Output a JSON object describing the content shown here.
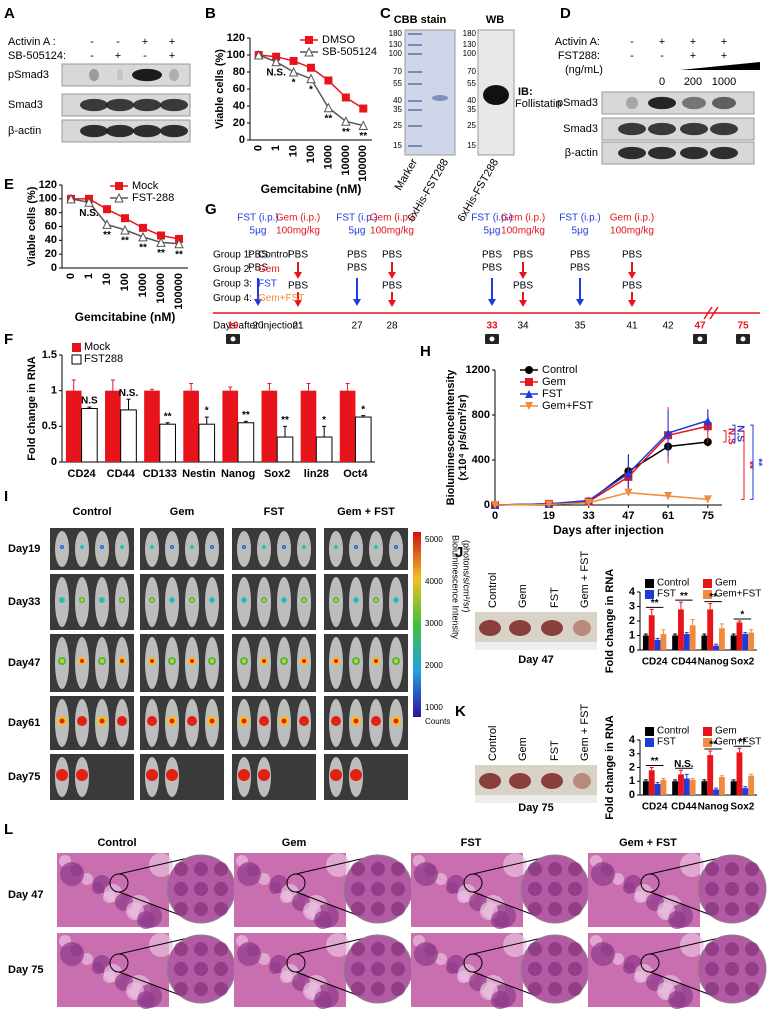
{
  "panel_labels": [
    "A",
    "B",
    "C",
    "D",
    "E",
    "F",
    "G",
    "H",
    "I",
    "J",
    "K",
    "L"
  ],
  "blot_A": {
    "conditions": [
      {
        "name": "Activin A :",
        "signs": [
          "-",
          "-",
          "+",
          "+"
        ]
      },
      {
        "name": "SB-505124:",
        "signs": [
          "-",
          "+",
          "-",
          "+"
        ]
      }
    ],
    "rows": [
      "pSmad3",
      "Smad3",
      "β-actin"
    ]
  },
  "blot_C": {
    "titles": [
      "CBB stain",
      "WB"
    ],
    "markers_cbb": [
      180,
      130,
      100,
      70,
      55,
      40,
      35,
      25,
      15
    ],
    "markers_wb": [
      180,
      130,
      100,
      70,
      55,
      40,
      35,
      25,
      15
    ],
    "ib": "IB:",
    "antibody": "Follistatin",
    "lanes": [
      "Marker",
      "6xHis-FST288",
      "6xHis-FST288"
    ]
  },
  "blot_D": {
    "conditions": [
      {
        "name": "Activin A:",
        "signs": [
          "-",
          "+",
          "+",
          "+"
        ]
      },
      {
        "name": "FST288:",
        "signs": [
          "-",
          "-",
          "+",
          "+"
        ]
      }
    ],
    "unit": "(ng/mL)",
    "doses": [
      "0",
      "200",
      "1000"
    ],
    "rows": [
      "pSmad3",
      "Smad3",
      "β-actin"
    ]
  },
  "schedule": {
    "injections": [
      {
        "drug": "FST (i.p.)",
        "dose": "5μg"
      },
      {
        "drug": "Gem (i.p.)",
        "dose": "100mg/kg"
      },
      {
        "drug": "FST (i.p.)",
        "dose": "5μg"
      },
      {
        "drug": "Gem (i.p.)",
        "dose": "100mg/kg"
      },
      {
        "drug": "FST (i.p.)",
        "dose": "5μg"
      },
      {
        "drug": "Gem (i.p.)",
        "dose": "100mg/kg"
      },
      {
        "drug": "FST (i.p.)",
        "dose": "5μg"
      },
      {
        "drug": "Gem (i.p.)",
        "dose": "100mg/kg"
      }
    ],
    "groups": [
      {
        "name": "Group 1:",
        "treatment": "Control"
      },
      {
        "name": "Group 2:",
        "treatment": "Gem"
      },
      {
        "name": "Group 3:",
        "treatment": "FST"
      },
      {
        "name": "Group 4:",
        "treatment": "Gem+FST"
      }
    ],
    "pbs": "PBS",
    "days_label": "Days after injection:",
    "days": [
      "19",
      "20",
      "21",
      "27",
      "28",
      "33",
      "34",
      "35",
      "41",
      "42",
      "47",
      "75"
    ]
  },
  "imaging": {
    "columns": [
      "Control",
      "Gem",
      "FST",
      "Gem + FST"
    ],
    "rows": [
      "Day19",
      "Day33",
      "Day47",
      "Day61",
      "Day75"
    ],
    "colorbar_ticks": [
      5000,
      4000,
      3000,
      2000,
      1000
    ],
    "colorbar_unit": "Counts",
    "colorbar_title": "Bioluminescence Intensity",
    "colorbar_subtitle": "(photons/s/cm²/sr)"
  },
  "tumors_J": {
    "labels": [
      "Control",
      "Gem",
      "FST",
      "Gem + FST"
    ],
    "caption": "Day 47"
  },
  "tumors_K": {
    "labels": [
      "Control",
      "Gem",
      "FST",
      "Gem + FST"
    ],
    "caption": "Day 75"
  },
  "histology": {
    "columns": [
      "Control",
      "Gem",
      "FST",
      "Gem + FST"
    ],
    "rows": [
      "Day 47",
      "Day 75"
    ]
  },
  "chart_data": [
    {
      "type": "line",
      "categories": [
        "0",
        "1",
        "10",
        "100",
        "1000",
        "10000",
        "100000"
      ],
      "xlabel": "Gemcitabine (nM)",
      "ylabel": "Viable cells (%)",
      "ylim": [
        0,
        120
      ],
      "yticks": [
        0,
        20,
        40,
        60,
        80,
        100,
        120
      ],
      "series": [
        {
          "name": "DMSO",
          "color": "#e8141c",
          "marker": "square",
          "values": [
            100,
            98,
            93,
            85,
            70,
            50,
            37
          ]
        },
        {
          "name": "SB-505124",
          "color": "#555555",
          "marker": "open-triangle",
          "values": [
            100,
            92,
            80,
            72,
            38,
            22,
            17
          ]
        }
      ],
      "annotations": [
        null,
        "N.S.",
        "*",
        "*",
        "**",
        "**",
        "**"
      ]
    },
    {
      "type": "line",
      "categories": [
        "0",
        "1",
        "10",
        "100",
        "1000",
        "10000",
        "100000"
      ],
      "xlabel": "Gemcitabine (nM)",
      "ylabel": "Viable cells (%)",
      "ylim": [
        0,
        120
      ],
      "yticks": [
        0,
        20,
        40,
        60,
        80,
        100,
        120
      ],
      "series": [
        {
          "name": "Mock",
          "color": "#e8141c",
          "marker": "square",
          "values": [
            100,
            100,
            85,
            72,
            58,
            47,
            42
          ]
        },
        {
          "name": "FST-288",
          "color": "#555555",
          "marker": "open-triangle",
          "values": [
            100,
            95,
            63,
            55,
            45,
            37,
            35
          ]
        }
      ],
      "annotations": [
        null,
        "N.S.",
        "**",
        "**",
        "**",
        "**",
        "**"
      ]
    },
    {
      "type": "bar",
      "categories": [
        "CD24",
        "CD44",
        "CD133",
        "Nestin",
        "Nanog",
        "Sox2",
        "lin28",
        "Oct4"
      ],
      "ylabel": "Fold change in RNA",
      "ylim": [
        0,
        1.5
      ],
      "yticks": [
        0,
        0.5,
        1,
        1.5
      ],
      "series": [
        {
          "name": "Mock",
          "color": "#e8141c",
          "values": [
            1,
            1,
            1,
            1,
            1,
            1,
            1,
            1
          ],
          "errors": [
            0.15,
            0.15,
            0.02,
            0.1,
            0.05,
            0.1,
            0.1,
            0.1
          ]
        },
        {
          "name": "FST288",
          "color": "#ffffff",
          "values": [
            0.75,
            0.73,
            0.53,
            0.53,
            0.55,
            0.35,
            0.35,
            0.63
          ],
          "errors": [
            0.02,
            0.15,
            0.02,
            0.1,
            0.02,
            0.15,
            0.15,
            0.02
          ]
        }
      ],
      "annotations": [
        "N.S",
        "N.S.",
        "**",
        "*",
        "**",
        "**",
        "*",
        "*"
      ]
    },
    {
      "type": "line",
      "x": [
        0,
        19,
        33,
        47,
        61,
        75
      ],
      "xlim": [
        0,
        80
      ],
      "xticks": [
        0,
        19,
        33,
        47,
        61,
        75
      ],
      "xlabel": "Days after injection",
      "ylabel": "BioluminescenceIntensity",
      "ylabel2": "(x10⁴ p/s/cm²/sr)",
      "ylim": [
        0,
        1200
      ],
      "yticks": [
        0,
        400,
        800,
        1200
      ],
      "series": [
        {
          "name": "Control",
          "color": "#000000",
          "marker": "circle",
          "values": [
            0,
            10,
            30,
            300,
            520,
            560
          ],
          "errors": [
            0,
            5,
            10,
            150,
            40,
            40
          ]
        },
        {
          "name": "Gem",
          "color": "#e8141c",
          "marker": "square",
          "values": [
            0,
            10,
            30,
            250,
            620,
            700
          ],
          "errors": [
            0,
            5,
            10,
            100,
            250,
            150
          ]
        },
        {
          "name": "FST",
          "color": "#1f3bdc",
          "marker": "triangle",
          "values": [
            0,
            10,
            40,
            280,
            640,
            750
          ],
          "errors": [
            0,
            5,
            10,
            150,
            200,
            100
          ]
        },
        {
          "name": "Gem+FST",
          "color": "#f08a3c",
          "marker": "down-triangle",
          "values": [
            0,
            5,
            20,
            110,
            80,
            50
          ],
          "errors": [
            0,
            3,
            5,
            30,
            30,
            30
          ]
        }
      ],
      "brackets": [
        {
          "text": "N.S",
          "color": "#e8141c"
        },
        {
          "text": "N.S",
          "color": "#1f3bdc"
        },
        {
          "text": "**",
          "color": "#e8141c"
        },
        {
          "text": "**",
          "color": "#1f3bdc"
        }
      ]
    },
    {
      "type": "bar",
      "categories": [
        "CD24",
        "CD44",
        "Nanog",
        "Sox2"
      ],
      "ylabel": "Fold change in RNA",
      "ylim": [
        0,
        4
      ],
      "yticks": [
        0,
        1,
        2,
        3,
        4
      ],
      "series": [
        {
          "name": "Control",
          "color": "#000000",
          "values": [
            1,
            1,
            1,
            1
          ],
          "errors": [
            0.1,
            0.1,
            0.1,
            0.1
          ]
        },
        {
          "name": "Gem",
          "color": "#e8141c",
          "values": [
            2.4,
            2.8,
            2.8,
            1.9
          ],
          "errors": [
            0.4,
            0.5,
            0.4,
            0.1
          ]
        },
        {
          "name": "FST",
          "color": "#1f3bdc",
          "values": [
            0.7,
            1.1,
            0.3,
            1.1
          ],
          "errors": [
            0.1,
            0.1,
            0.1,
            0.1
          ]
        },
        {
          "name": "Gem+FST",
          "color": "#f08a3c",
          "values": [
            1.1,
            1.7,
            1.5,
            1.2
          ],
          "errors": [
            0.3,
            0.4,
            0.3,
            0.2
          ]
        }
      ],
      "annotations": [
        "**",
        "**",
        "**",
        "*"
      ]
    },
    {
      "type": "bar",
      "categories": [
        "CD24",
        "CD44",
        "Nanog",
        "Sox2"
      ],
      "ylabel": "Fold change in RNA",
      "ylim": [
        0,
        4
      ],
      "yticks": [
        0,
        1,
        2,
        3,
        4
      ],
      "series": [
        {
          "name": "Control",
          "color": "#000000",
          "values": [
            1,
            1,
            1,
            1
          ],
          "errors": [
            0.1,
            0.1,
            0.1,
            0.1
          ]
        },
        {
          "name": "Gem",
          "color": "#e8141c",
          "values": [
            1.8,
            1.5,
            2.9,
            3.1
          ],
          "errors": [
            0.2,
            0.3,
            0.3,
            0.3
          ]
        },
        {
          "name": "FST",
          "color": "#1f3bdc",
          "values": [
            0.8,
            1.2,
            0.4,
            0.5
          ],
          "errors": [
            0.1,
            0.3,
            0.1,
            0.1
          ]
        },
        {
          "name": "Gem+FST",
          "color": "#f08a3c",
          "values": [
            1.1,
            1.1,
            1.3,
            1.4
          ],
          "errors": [
            0.1,
            0.1,
            0.1,
            0.1
          ]
        }
      ],
      "annotations": [
        "**",
        "N.S.",
        "**",
        "**"
      ]
    }
  ]
}
